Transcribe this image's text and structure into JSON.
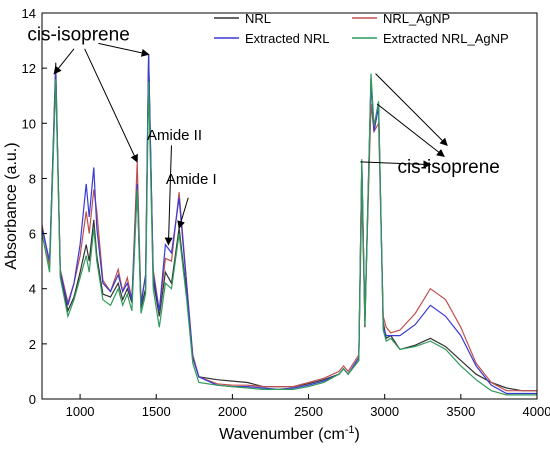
{
  "chart_data": {
    "type": "line",
    "xlabel": "Wavenumber (cm",
    "xlabel_sup": "-1",
    "xlabel_end": ")",
    "ylabel": "Absorbance (a.u.)",
    "xlim": [
      750,
      4000
    ],
    "ylim": [
      0,
      14
    ],
    "xticks": [
      1000,
      1500,
      2000,
      2500,
      3000,
      3500,
      4000
    ],
    "yticks": [
      0,
      2,
      4,
      6,
      8,
      10,
      12,
      14
    ],
    "grid": false,
    "legend_position": "top-right",
    "series": [
      {
        "name": "NRL",
        "color": "#333333",
        "points": [
          [
            750,
            6.3
          ],
          [
            800,
            4.9
          ],
          [
            840,
            12.2
          ],
          [
            870,
            4.5
          ],
          [
            920,
            3.2
          ],
          [
            960,
            3.7
          ],
          [
            1000,
            4.6
          ],
          [
            1040,
            5.6
          ],
          [
            1060,
            5.0
          ],
          [
            1090,
            6.5
          ],
          [
            1110,
            5.2
          ],
          [
            1150,
            3.8
          ],
          [
            1200,
            3.7
          ],
          [
            1250,
            4.2
          ],
          [
            1280,
            3.6
          ],
          [
            1310,
            4.0
          ],
          [
            1340,
            3.5
          ],
          [
            1375,
            7.8
          ],
          [
            1400,
            3.3
          ],
          [
            1430,
            4.0
          ],
          [
            1450,
            12.5
          ],
          [
            1480,
            4.3
          ],
          [
            1520,
            3.0
          ],
          [
            1560,
            4.6
          ],
          [
            1600,
            4.2
          ],
          [
            1650,
            6.2
          ],
          [
            1700,
            3.8
          ],
          [
            1740,
            1.5
          ],
          [
            1780,
            0.8
          ],
          [
            1900,
            0.7
          ],
          [
            2000,
            0.65
          ],
          [
            2100,
            0.6
          ],
          [
            2200,
            0.45
          ],
          [
            2300,
            0.45
          ],
          [
            2400,
            0.45
          ],
          [
            2500,
            0.55
          ],
          [
            2600,
            0.7
          ],
          [
            2700,
            0.9
          ],
          [
            2730,
            1.1
          ],
          [
            2760,
            0.9
          ],
          [
            2830,
            1.4
          ],
          [
            2850,
            8.6
          ],
          [
            2870,
            2.6
          ],
          [
            2910,
            11.6
          ],
          [
            2930,
            9.8
          ],
          [
            2960,
            10.7
          ],
          [
            2990,
            2.8
          ],
          [
            3010,
            2.2
          ],
          [
            3040,
            2.3
          ],
          [
            3100,
            1.8
          ],
          [
            3200,
            1.95
          ],
          [
            3300,
            2.2
          ],
          [
            3400,
            1.9
          ],
          [
            3500,
            1.4
          ],
          [
            3600,
            0.9
          ],
          [
            3700,
            0.6
          ],
          [
            3800,
            0.4
          ],
          [
            3900,
            0.3
          ],
          [
            4000,
            0.3
          ]
        ]
      },
      {
        "name": "NRL_AgNP",
        "color": "#c0504d",
        "points": [
          [
            750,
            6.3
          ],
          [
            800,
            4.8
          ],
          [
            840,
            11.8
          ],
          [
            870,
            4.7
          ],
          [
            920,
            3.5
          ],
          [
            960,
            4.2
          ],
          [
            1000,
            5.2
          ],
          [
            1040,
            6.8
          ],
          [
            1060,
            6.0
          ],
          [
            1090,
            7.6
          ],
          [
            1110,
            6.8
          ],
          [
            1150,
            4.3
          ],
          [
            1200,
            3.9
          ],
          [
            1250,
            4.7
          ],
          [
            1280,
            3.9
          ],
          [
            1310,
            4.4
          ],
          [
            1340,
            3.6
          ],
          [
            1375,
            8.6
          ],
          [
            1400,
            3.5
          ],
          [
            1430,
            4.5
          ],
          [
            1450,
            12.1
          ],
          [
            1480,
            4.7
          ],
          [
            1520,
            3.2
          ],
          [
            1560,
            5.1
          ],
          [
            1600,
            5.0
          ],
          [
            1650,
            7.5
          ],
          [
            1700,
            4.2
          ],
          [
            1740,
            1.6
          ],
          [
            1780,
            0.8
          ],
          [
            1900,
            0.55
          ],
          [
            2000,
            0.5
          ],
          [
            2100,
            0.5
          ],
          [
            2200,
            0.45
          ],
          [
            2300,
            0.45
          ],
          [
            2400,
            0.45
          ],
          [
            2500,
            0.6
          ],
          [
            2600,
            0.75
          ],
          [
            2700,
            1.0
          ],
          [
            2730,
            1.2
          ],
          [
            2760,
            1.0
          ],
          [
            2830,
            1.6
          ],
          [
            2850,
            7.4
          ],
          [
            2870,
            3.0
          ],
          [
            2910,
            10.7
          ],
          [
            2930,
            9.7
          ],
          [
            2960,
            10.0
          ],
          [
            2990,
            3.0
          ],
          [
            3010,
            2.6
          ],
          [
            3040,
            2.4
          ],
          [
            3100,
            2.5
          ],
          [
            3200,
            3.1
          ],
          [
            3300,
            4.0
          ],
          [
            3400,
            3.6
          ],
          [
            3500,
            2.6
          ],
          [
            3600,
            1.3
          ],
          [
            3700,
            0.6
          ],
          [
            3800,
            0.3
          ],
          [
            3900,
            0.3
          ],
          [
            4000,
            0.3
          ]
        ]
      },
      {
        "name": "Extracted NRL",
        "color": "#3a3ad6",
        "points": [
          [
            750,
            6.2
          ],
          [
            800,
            5.0
          ],
          [
            840,
            11.9
          ],
          [
            870,
            4.6
          ],
          [
            920,
            3.4
          ],
          [
            960,
            4.2
          ],
          [
            1000,
            5.6
          ],
          [
            1040,
            7.8
          ],
          [
            1060,
            6.6
          ],
          [
            1090,
            8.4
          ],
          [
            1110,
            6.2
          ],
          [
            1150,
            4.2
          ],
          [
            1200,
            3.9
          ],
          [
            1250,
            4.5
          ],
          [
            1280,
            3.9
          ],
          [
            1310,
            4.2
          ],
          [
            1340,
            3.6
          ],
          [
            1375,
            7.8
          ],
          [
            1400,
            3.4
          ],
          [
            1430,
            4.5
          ],
          [
            1450,
            12.5
          ],
          [
            1480,
            4.5
          ],
          [
            1520,
            3.2
          ],
          [
            1560,
            5.6
          ],
          [
            1600,
            5.3
          ],
          [
            1650,
            7.3
          ],
          [
            1700,
            4.1
          ],
          [
            1740,
            1.5
          ],
          [
            1780,
            0.8
          ],
          [
            1900,
            0.5
          ],
          [
            2000,
            0.45
          ],
          [
            2100,
            0.45
          ],
          [
            2200,
            0.4
          ],
          [
            2300,
            0.35
          ],
          [
            2400,
            0.4
          ],
          [
            2500,
            0.5
          ],
          [
            2600,
            0.65
          ],
          [
            2700,
            0.9
          ],
          [
            2730,
            1.1
          ],
          [
            2760,
            0.9
          ],
          [
            2830,
            1.5
          ],
          [
            2850,
            8.5
          ],
          [
            2870,
            2.9
          ],
          [
            2910,
            11.5
          ],
          [
            2930,
            9.7
          ],
          [
            2960,
            10.6
          ],
          [
            2990,
            2.6
          ],
          [
            3010,
            2.3
          ],
          [
            3040,
            2.3
          ],
          [
            3100,
            2.3
          ],
          [
            3200,
            2.7
          ],
          [
            3300,
            3.4
          ],
          [
            3400,
            3.0
          ],
          [
            3500,
            2.3
          ],
          [
            3600,
            1.2
          ],
          [
            3700,
            0.5
          ],
          [
            3800,
            0.2
          ],
          [
            3900,
            0.2
          ],
          [
            4000,
            0.2
          ]
        ]
      },
      {
        "name": "Extracted NRL_AgNP",
        "color": "#2f9a5a",
        "points": [
          [
            750,
            6.0
          ],
          [
            800,
            4.6
          ],
          [
            840,
            11.6
          ],
          [
            870,
            4.4
          ],
          [
            920,
            3.0
          ],
          [
            960,
            3.6
          ],
          [
            1000,
            4.4
          ],
          [
            1040,
            5.2
          ],
          [
            1060,
            4.6
          ],
          [
            1090,
            6.2
          ],
          [
            1110,
            5.0
          ],
          [
            1150,
            3.6
          ],
          [
            1200,
            3.4
          ],
          [
            1250,
            4.0
          ],
          [
            1280,
            3.4
          ],
          [
            1310,
            3.8
          ],
          [
            1340,
            3.2
          ],
          [
            1375,
            7.6
          ],
          [
            1400,
            3.1
          ],
          [
            1430,
            3.8
          ],
          [
            1450,
            11.5
          ],
          [
            1480,
            4.0
          ],
          [
            1520,
            2.6
          ],
          [
            1560,
            4.2
          ],
          [
            1600,
            4.0
          ],
          [
            1650,
            6.0
          ],
          [
            1700,
            3.6
          ],
          [
            1740,
            1.3
          ],
          [
            1780,
            0.6
          ],
          [
            1900,
            0.5
          ],
          [
            2000,
            0.45
          ],
          [
            2100,
            0.4
          ],
          [
            2200,
            0.35
          ],
          [
            2300,
            0.35
          ],
          [
            2400,
            0.35
          ],
          [
            2500,
            0.45
          ],
          [
            2600,
            0.6
          ],
          [
            2700,
            0.9
          ],
          [
            2730,
            1.1
          ],
          [
            2760,
            0.9
          ],
          [
            2830,
            1.4
          ],
          [
            2850,
            8.7
          ],
          [
            2870,
            2.7
          ],
          [
            2910,
            11.8
          ],
          [
            2930,
            9.9
          ],
          [
            2960,
            10.8
          ],
          [
            2990,
            2.5
          ],
          [
            3010,
            2.1
          ],
          [
            3040,
            2.2
          ],
          [
            3100,
            1.8
          ],
          [
            3200,
            1.9
          ],
          [
            3300,
            2.1
          ],
          [
            3400,
            1.8
          ],
          [
            3500,
            1.2
          ],
          [
            3600,
            0.7
          ],
          [
            3700,
            0.3
          ],
          [
            3800,
            0.15
          ],
          [
            3900,
            0.15
          ],
          [
            4000,
            0.15
          ]
        ]
      }
    ],
    "annotations": [
      {
        "text": "cis-isoprene",
        "style": "big",
        "anchor_x": 990,
        "anchor_y": 13.0
      },
      {
        "text": "Amide II",
        "style": "small",
        "anchor_x": 1620,
        "anchor_y": 9.4
      },
      {
        "text": "Amide I",
        "style": "small",
        "anchor_x": 1730,
        "anchor_y": 7.8
      },
      {
        "text": "cis-isoprene",
        "style": "big",
        "anchor_x": 3420,
        "anchor_y": 8.2
      }
    ],
    "arrows": [
      {
        "from": [
          960,
          12.7
        ],
        "to": [
          830,
          11.8
        ]
      },
      {
        "from": [
          1030,
          12.7
        ],
        "to": [
          1375,
          8.6
        ]
      },
      {
        "from": [
          1120,
          12.9
        ],
        "to": [
          1450,
          12.5
        ]
      },
      {
        "from": [
          1600,
          9.2
        ],
        "to": [
          1580,
          5.6
        ]
      },
      {
        "from": [
          1710,
          7.3
        ],
        "to": [
          1650,
          6.2
        ]
      },
      {
        "from": [
          2940,
          11.8
        ],
        "to": [
          3410,
          9.2
        ]
      },
      {
        "from": [
          2950,
          10.7
        ],
        "to": [
          3390,
          8.8
        ]
      },
      {
        "from": [
          2840,
          8.6
        ],
        "to": [
          3300,
          8.5
        ]
      }
    ]
  }
}
